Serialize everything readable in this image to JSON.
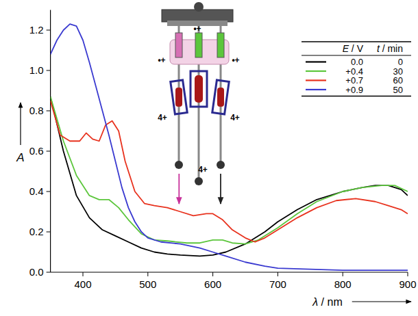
{
  "chart_data": {
    "type": "line",
    "x_label": "λ / nm",
    "y_label": "A",
    "xlim": [
      350,
      900
    ],
    "ylim": [
      0,
      1.3
    ],
    "xticks": [
      400,
      500,
      600,
      700,
      800,
      900
    ],
    "yticks": [
      {
        "value": 0,
        "label": "0.0"
      },
      {
        "value": 0.2,
        "label": "0.2"
      },
      {
        "value": 0.4,
        "label": "0.4"
      },
      {
        "value": 0.6,
        "label": "0.6"
      },
      {
        "value": 0.8,
        "label": "0.8"
      },
      {
        "value": 1.0,
        "label": "1.0"
      },
      {
        "value": 1.2,
        "label": "1.2"
      }
    ],
    "legend": "top-right",
    "legend_headers": [
      "E / V",
      "t / min"
    ],
    "series": [
      {
        "name": "0.0",
        "t": 0,
        "color": "#000000",
        "x": [
          350,
          370,
          390,
          410,
          430,
          450,
          470,
          490,
          510,
          530,
          550,
          580,
          600,
          620,
          650,
          680,
          700,
          730,
          760,
          800,
          830,
          850,
          870,
          890,
          900
        ],
        "values": [
          0.87,
          0.6,
          0.38,
          0.27,
          0.21,
          0.18,
          0.15,
          0.12,
          0.1,
          0.09,
          0.085,
          0.08,
          0.085,
          0.1,
          0.14,
          0.2,
          0.25,
          0.31,
          0.36,
          0.4,
          0.42,
          0.43,
          0.43,
          0.41,
          0.38
        ]
      },
      {
        "name": "+0.4",
        "t": 30,
        "color": "#5cc63c",
        "x": [
          350,
          370,
          390,
          410,
          425,
          440,
          455,
          470,
          490,
          510,
          530,
          560,
          580,
          600,
          615,
          630,
          650,
          670,
          700,
          730,
          760,
          800,
          830,
          860,
          880,
          900
        ],
        "values": [
          0.87,
          0.65,
          0.48,
          0.38,
          0.36,
          0.36,
          0.32,
          0.26,
          0.19,
          0.16,
          0.155,
          0.145,
          0.145,
          0.16,
          0.16,
          0.145,
          0.14,
          0.16,
          0.22,
          0.29,
          0.35,
          0.4,
          0.42,
          0.43,
          0.43,
          0.4
        ]
      },
      {
        "name": "+0.7",
        "t": 60,
        "color": "#e8321e",
        "x": [
          350,
          365,
          380,
          395,
          405,
          415,
          425,
          435,
          445,
          455,
          465,
          480,
          495,
          510,
          530,
          550,
          570,
          590,
          600,
          615,
          630,
          650,
          665,
          680,
          700,
          730,
          760,
          790,
          820,
          850,
          870,
          890,
          900
        ],
        "values": [
          0.85,
          0.68,
          0.65,
          0.65,
          0.69,
          0.66,
          0.65,
          0.73,
          0.75,
          0.7,
          0.55,
          0.4,
          0.34,
          0.33,
          0.32,
          0.3,
          0.28,
          0.29,
          0.29,
          0.26,
          0.21,
          0.17,
          0.15,
          0.17,
          0.21,
          0.27,
          0.32,
          0.355,
          0.365,
          0.35,
          0.33,
          0.31,
          0.29
        ]
      },
      {
        "name": "+0.9",
        "t": 50,
        "color": "#3a3ad0",
        "x": [
          350,
          360,
          370,
          380,
          390,
          400,
          410,
          420,
          430,
          440,
          450,
          460,
          470,
          480,
          490,
          500,
          520,
          550,
          580,
          600,
          620,
          650,
          680,
          700,
          750,
          800,
          850,
          900
        ],
        "values": [
          1.08,
          1.15,
          1.2,
          1.23,
          1.22,
          1.15,
          1.04,
          0.92,
          0.8,
          0.68,
          0.55,
          0.42,
          0.32,
          0.25,
          0.2,
          0.17,
          0.15,
          0.14,
          0.12,
          0.1,
          0.08,
          0.05,
          0.03,
          0.02,
          0.015,
          0.01,
          0.01,
          0.01
        ]
      }
    ],
    "inset": {
      "labels": [
        "•+",
        "•+",
        "•+",
        "4+",
        "4+",
        "4+"
      ],
      "arrows": [
        {
          "x": 548,
          "color": "#c8329b"
        },
        {
          "x": 612,
          "color": "#222222"
        }
      ]
    }
  }
}
